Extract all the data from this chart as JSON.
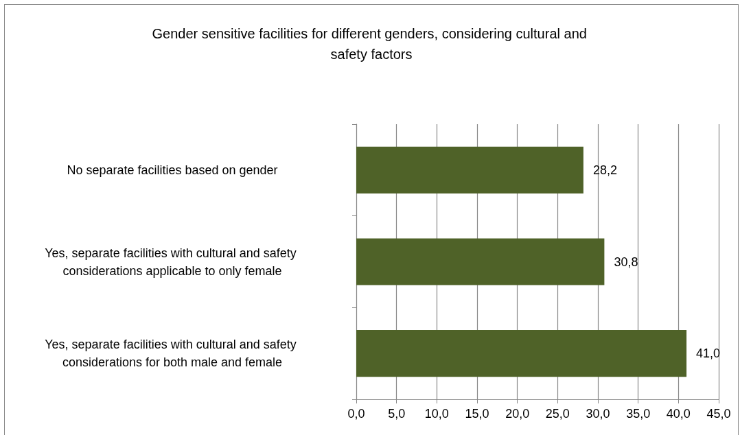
{
  "chart_data": {
    "type": "bar",
    "orientation": "horizontal",
    "title": "Gender sensitive facilities for different genders, considering cultural and safety factors",
    "categories": [
      "No separate facilities based on gender",
      "Yes, separate facilities with cultural and safety considerations applicable to only female",
      "Yes, separate facilities with cultural and safety considerations for both male and female"
    ],
    "values": [
      28.2,
      30.8,
      41.0
    ],
    "value_labels": [
      "28,2",
      "30,8",
      "41,0"
    ],
    "color": "#4f6228",
    "xlim": [
      0,
      45
    ],
    "xticks": [
      {
        "value": 0,
        "label": "0,0"
      },
      {
        "value": 5,
        "label": "5,0"
      },
      {
        "value": 10,
        "label": "10,0"
      },
      {
        "value": 15,
        "label": "15,0"
      },
      {
        "value": 20,
        "label": "20,0"
      },
      {
        "value": 25,
        "label": "25,0"
      },
      {
        "value": 30,
        "label": "30,0"
      },
      {
        "value": 35,
        "label": "35,0"
      },
      {
        "value": 40,
        "label": "40,0"
      },
      {
        "value": 45,
        "label": "45,0"
      }
    ],
    "grid": "x"
  }
}
